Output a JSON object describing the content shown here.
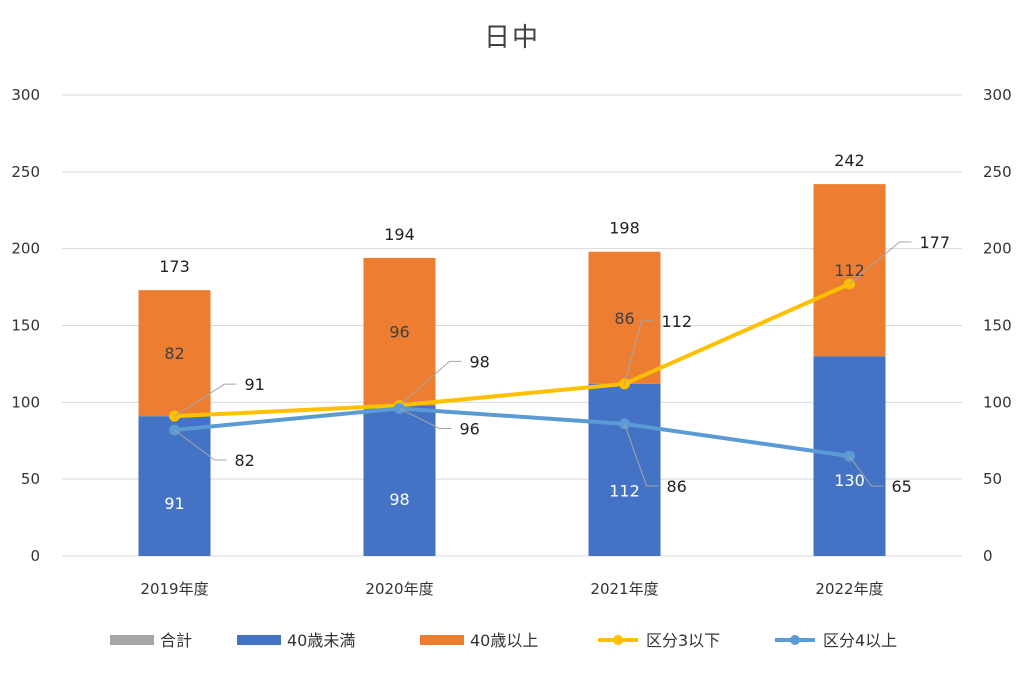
{
  "chart_data": {
    "type": "bar",
    "title": "日中",
    "categories": [
      "2019年度",
      "2020年度",
      "2021年度",
      "2022年度"
    ],
    "ylim": [
      0,
      300
    ],
    "y_ticks": [
      0,
      50,
      100,
      150,
      200,
      250,
      300
    ],
    "y2lim": [
      0,
      300
    ],
    "y2_ticks": [
      0,
      50,
      100,
      150,
      200,
      250,
      300
    ],
    "grid": true,
    "legend_position": "bottom",
    "series": [
      {
        "name": "合計",
        "kind": "total",
        "values": [
          173,
          194,
          198,
          242
        ],
        "color": "#A5A5A5"
      },
      {
        "name": "40歳未満",
        "kind": "stacked-bar",
        "values": [
          91,
          98,
          112,
          130
        ],
        "color": "#4472C4"
      },
      {
        "name": "40歳以上",
        "kind": "stacked-bar",
        "values": [
          82,
          96,
          86,
          112
        ],
        "color": "#ED7D31"
      },
      {
        "name": "区分3以下",
        "kind": "line",
        "axis": "secondary",
        "values": [
          91,
          98,
          112,
          177
        ],
        "color": "#FFC000"
      },
      {
        "name": "区分4以上",
        "kind": "line",
        "axis": "secondary",
        "values": [
          82,
          96,
          86,
          65
        ],
        "color": "#5B9BD5"
      }
    ]
  }
}
